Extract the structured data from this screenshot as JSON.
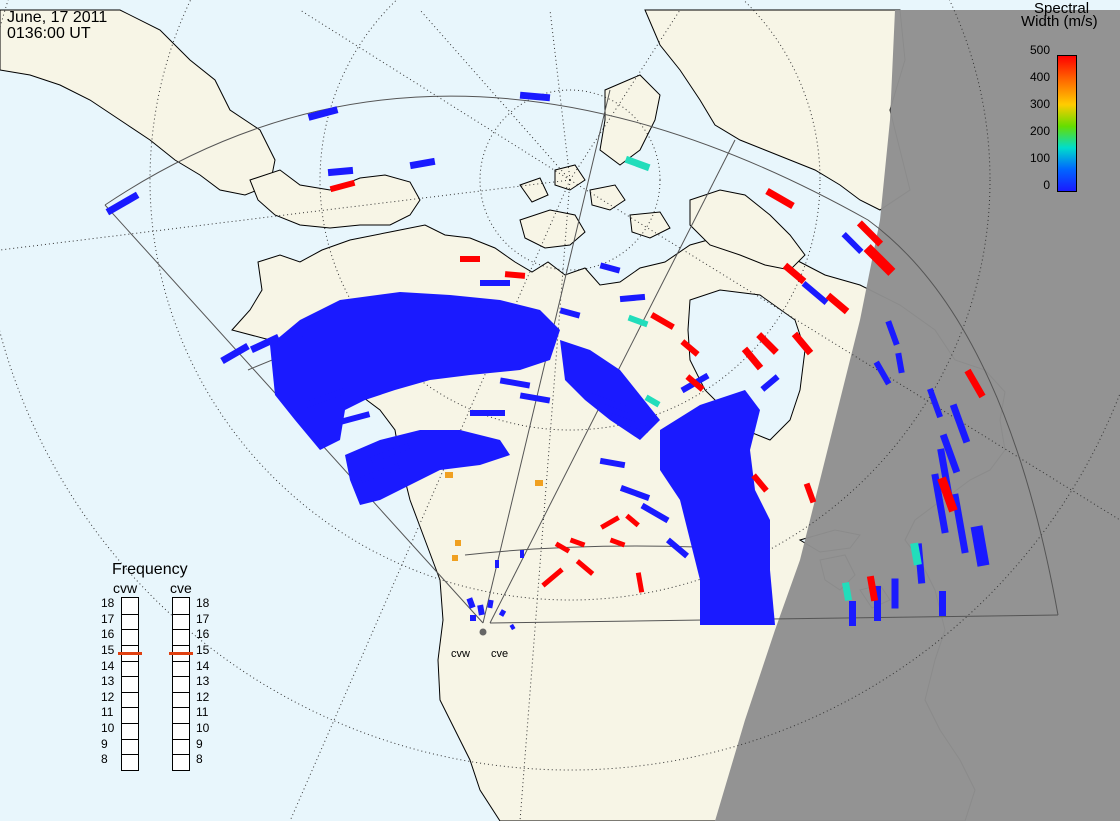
{
  "header": {
    "date": "June, 17 2011",
    "time": "0136:00 UT"
  },
  "colorbar": {
    "title_line1": "Spectral",
    "title_line2": "Width (m/s)",
    "ticks": [
      "500",
      "400",
      "300",
      "200",
      "100",
      "0"
    ],
    "colors": [
      "#ff0000",
      "#ff8c00",
      "#e6e600",
      "#22cc22",
      "#00ddcc",
      "#1a1aff"
    ]
  },
  "frequency_panel": {
    "title": "Frequency",
    "radars": [
      "cvw",
      "cve"
    ],
    "scale": [
      "18",
      "17",
      "16",
      "15",
      "14",
      "13",
      "12",
      "11",
      "10",
      "9",
      "8"
    ],
    "cvw_value_mhz": 15,
    "cve_value_mhz": 15
  },
  "sites": {
    "west": "cvw",
    "east": "cve"
  },
  "colors": {
    "ocean": "#e8f6fc",
    "land": "#f7f5e6",
    "night": "#909090",
    "echo_low": "#1a1aff",
    "echo_high": "#ff0000",
    "echo_mid": "#22ddbb",
    "echo_orange": "#f0a020",
    "marker": "#e04010"
  }
}
